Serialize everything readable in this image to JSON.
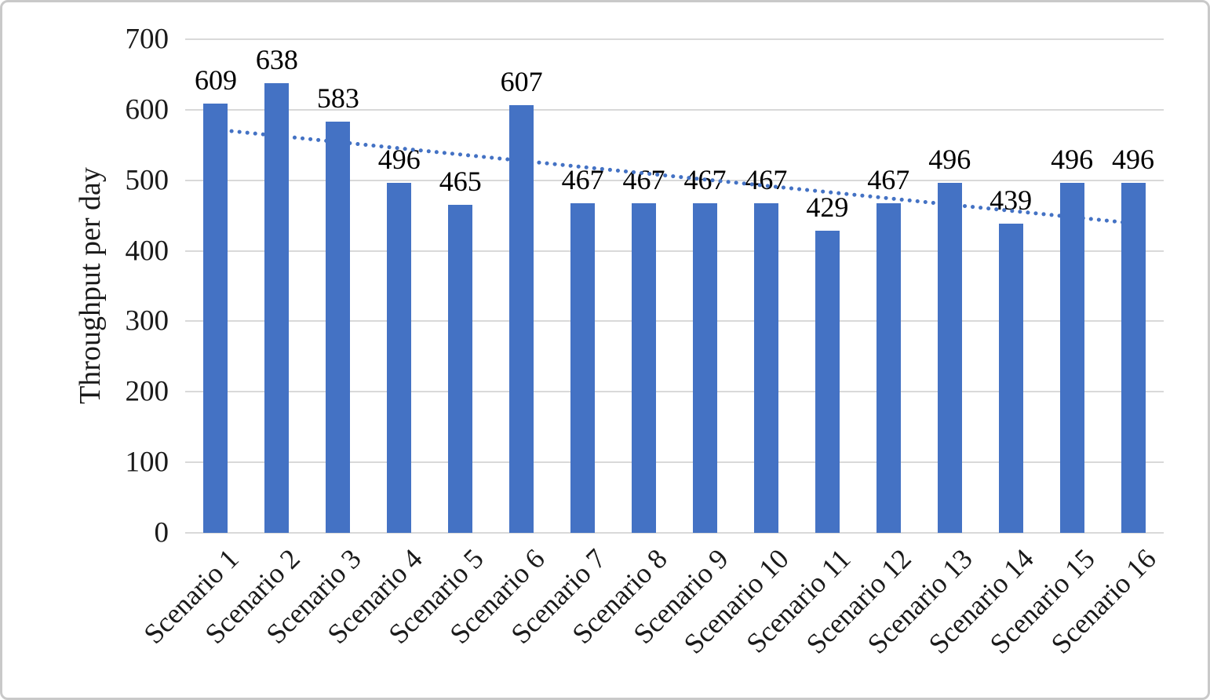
{
  "chart_data": {
    "type": "bar",
    "title": "",
    "categories": [
      "Scenario 1",
      "Scenario 2",
      "Scenario 3",
      "Scenario 4",
      "Scenario 5",
      "Scenario 6",
      "Scenario 7",
      "Scenario 8",
      "Scenario 9",
      "Scenario 10",
      "Scenario 11",
      "Scenario 12",
      "Scenario 13",
      "Scenario 14",
      "Scenario 15",
      "Scenario 16"
    ],
    "values": [
      609,
      638,
      583,
      496,
      465,
      607,
      467,
      467,
      467,
      467,
      429,
      467,
      496,
      439,
      496,
      496
    ],
    "data_labels": true,
    "xlabel": "",
    "ylabel": "Throughput per day",
    "ylim": [
      0,
      700
    ],
    "yticks": [
      0,
      100,
      200,
      300,
      400,
      500,
      600,
      700
    ],
    "grid": true,
    "legend": "none",
    "bar_color": "#4472C4",
    "gridline_color": "#d9d9d9",
    "trendline": {
      "type": "linear",
      "style": "dotted",
      "color": "#4472C4",
      "start_value": 572,
      "end_value": 439
    }
  }
}
